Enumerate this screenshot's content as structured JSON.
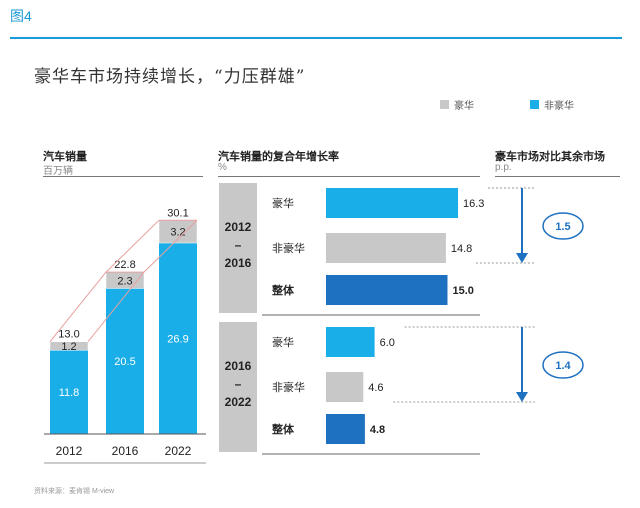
{
  "figure_label": "图4",
  "headline": "豪华车市场持续增长，“力压群雄”",
  "legend": [
    {
      "label": "豪华",
      "color": "#c8c8c8"
    },
    {
      "label": "非豪华",
      "color": "#1aaee8"
    }
  ],
  "colors": {
    "luxury": "#c8c8c8",
    "nonluxury": "#1aaee8",
    "overall": "#1e70c0",
    "accent": "#1a9ad6",
    "period_panel": "#c8c8c8"
  },
  "left_chart": {
    "title": "汽车销量",
    "unit": "百万辆"
  },
  "middle_chart": {
    "title": "汽车销量的复合年增长率",
    "unit": "%"
  },
  "right_chart": {
    "title": "豪车市场对比其余市场",
    "unit": "p.p."
  },
  "source": "资料来源：麦肯锡 M-view",
  "chart_data": [
    {
      "type": "bar",
      "stacked": true,
      "title": "汽车销量",
      "ylabel": "百万辆",
      "categories": [
        "2012",
        "2016",
        "2022"
      ],
      "series": [
        {
          "name": "非豪华",
          "values": [
            11.8,
            20.5,
            26.9
          ]
        },
        {
          "name": "豪华",
          "values": [
            1.2,
            2.3,
            3.2
          ]
        }
      ],
      "totals": [
        13.0,
        22.8,
        30.1
      ],
      "value_labels": {
        "nonluxury": [
          "11.8",
          "20.5",
          "26.9"
        ],
        "luxury": [
          "1.2",
          "2.3",
          "3.2"
        ],
        "totals": [
          "13.0",
          "22.8",
          "30.1"
        ]
      }
    },
    {
      "type": "bar",
      "orientation": "horizontal",
      "title": "汽车销量的复合年增长率",
      "unit": "%",
      "groups": [
        {
          "period": [
            "2012",
            "–",
            "2016"
          ],
          "bars": [
            {
              "label": "豪华",
              "value": 16.3,
              "value_text": "16.3",
              "kind": "luxury"
            },
            {
              "label": "非豪华",
              "value": 14.8,
              "value_text": "14.8",
              "kind": "nonluxury"
            },
            {
              "label": "整体",
              "value": 15.0,
              "value_text": "15.0",
              "kind": "overall"
            }
          ]
        },
        {
          "period": [
            "2016",
            "–",
            "2022"
          ],
          "bars": [
            {
              "label": "豪华",
              "value": 6.0,
              "value_text": "6.0",
              "kind": "luxury"
            },
            {
              "label": "非豪华",
              "value": 4.6,
              "value_text": "4.6",
              "kind": "nonluxury"
            },
            {
              "label": "整体",
              "value": 4.8,
              "value_text": "4.8",
              "kind": "overall"
            }
          ]
        }
      ]
    },
    {
      "type": "annotation",
      "title": "豪车市场对比其余市场",
      "unit": "p.p.",
      "differences": [
        {
          "period": "2012–2016",
          "value": 1.5,
          "value_text": "1.5"
        },
        {
          "period": "2016–2022",
          "value": 1.4,
          "value_text": "1.4"
        }
      ]
    }
  ]
}
